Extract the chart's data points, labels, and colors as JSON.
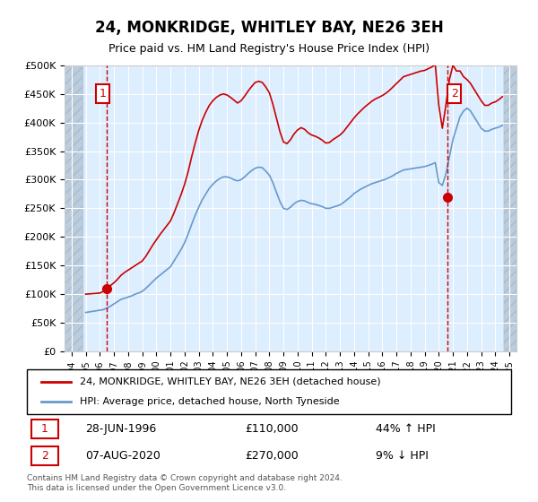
{
  "title": "24, MONKRIDGE, WHITLEY BAY, NE26 3EH",
  "subtitle": "Price paid vs. HM Land Registry's House Price Index (HPI)",
  "ylabel_ticks": [
    "£0",
    "£50K",
    "£100K",
    "£150K",
    "£200K",
    "£250K",
    "£300K",
    "£350K",
    "£400K",
    "£450K",
    "£500K"
  ],
  "ylim": [
    0,
    500000
  ],
  "xlim_start": 1993.5,
  "xlim_end": 2025.5,
  "sale1_date": "28-JUN-1996",
  "sale1_price": 110000,
  "sale1_pct": "44% ↑ HPI",
  "sale1_x": 1996.49,
  "sale2_date": "07-AUG-2020",
  "sale2_price": 270000,
  "sale2_pct": "9% ↓ HPI",
  "sale2_x": 2020.6,
  "legend_line1": "24, MONKRIDGE, WHITLEY BAY, NE26 3EH (detached house)",
  "legend_line2": "HPI: Average price, detached house, North Tyneside",
  "footer": "Contains HM Land Registry data © Crown copyright and database right 2024.\nThis data is licensed under the Open Government Licence v3.0.",
  "line_red_color": "#cc0000",
  "line_blue_color": "#6699cc",
  "bg_plot_color": "#ddeeff",
  "bg_hatch_color": "#bbccdd",
  "grid_color": "#ffffff",
  "vline_color": "#cc0000",
  "hpi_data_x": [
    1995.0,
    1995.25,
    1995.5,
    1995.75,
    1996.0,
    1996.25,
    1996.5,
    1996.75,
    1997.0,
    1997.25,
    1997.5,
    1997.75,
    1998.0,
    1998.25,
    1998.5,
    1998.75,
    1999.0,
    1999.25,
    1999.5,
    1999.75,
    2000.0,
    2000.25,
    2000.5,
    2000.75,
    2001.0,
    2001.25,
    2001.5,
    2001.75,
    2002.0,
    2002.25,
    2002.5,
    2002.75,
    2003.0,
    2003.25,
    2003.5,
    2003.75,
    2004.0,
    2004.25,
    2004.5,
    2004.75,
    2005.0,
    2005.25,
    2005.5,
    2005.75,
    2006.0,
    2006.25,
    2006.5,
    2006.75,
    2007.0,
    2007.25,
    2007.5,
    2007.75,
    2008.0,
    2008.25,
    2008.5,
    2008.75,
    2009.0,
    2009.25,
    2009.5,
    2009.75,
    2010.0,
    2010.25,
    2010.5,
    2010.75,
    2011.0,
    2011.25,
    2011.5,
    2011.75,
    2012.0,
    2012.25,
    2012.5,
    2012.75,
    2013.0,
    2013.25,
    2013.5,
    2013.75,
    2014.0,
    2014.25,
    2014.5,
    2014.75,
    2015.0,
    2015.25,
    2015.5,
    2015.75,
    2016.0,
    2016.25,
    2016.5,
    2016.75,
    2017.0,
    2017.25,
    2017.5,
    2017.75,
    2018.0,
    2018.25,
    2018.5,
    2018.75,
    2019.0,
    2019.25,
    2019.5,
    2019.75,
    2020.0,
    2020.25,
    2020.5,
    2020.75,
    2021.0,
    2021.25,
    2021.5,
    2021.75,
    2022.0,
    2022.25,
    2022.5,
    2022.75,
    2023.0,
    2023.25,
    2023.5,
    2023.75,
    2024.0,
    2024.25,
    2024.5
  ],
  "hpi_data_y": [
    68000,
    69000,
    70000,
    71000,
    72000,
    73000,
    76000,
    79000,
    83000,
    87000,
    91000,
    93000,
    95000,
    97000,
    100000,
    102000,
    105000,
    110000,
    116000,
    122000,
    128000,
    133000,
    138000,
    143000,
    148000,
    158000,
    168000,
    178000,
    190000,
    205000,
    222000,
    238000,
    252000,
    265000,
    275000,
    285000,
    292000,
    298000,
    302000,
    305000,
    305000,
    303000,
    300000,
    298000,
    300000,
    305000,
    311000,
    316000,
    320000,
    322000,
    321000,
    315000,
    308000,
    295000,
    278000,
    262000,
    250000,
    248000,
    252000,
    258000,
    262000,
    264000,
    263000,
    260000,
    258000,
    257000,
    255000,
    253000,
    250000,
    250000,
    252000,
    254000,
    256000,
    260000,
    265000,
    270000,
    276000,
    280000,
    284000,
    287000,
    290000,
    293000,
    295000,
    297000,
    299000,
    301000,
    304000,
    307000,
    311000,
    314000,
    317000,
    318000,
    319000,
    320000,
    321000,
    322000,
    323000,
    325000,
    327000,
    330000,
    295000,
    290000,
    310000,
    340000,
    370000,
    390000,
    410000,
    420000,
    425000,
    420000,
    410000,
    400000,
    390000,
    385000,
    385000,
    388000,
    390000,
    392000,
    395000
  ],
  "red_data_x": [
    1995.0,
    1995.25,
    1995.5,
    1995.75,
    1996.0,
    1996.25,
    1996.5,
    1996.75,
    1997.0,
    1997.25,
    1997.5,
    1997.75,
    1998.0,
    1998.25,
    1998.5,
    1998.75,
    1999.0,
    1999.25,
    1999.5,
    1999.75,
    2000.0,
    2000.25,
    2000.5,
    2000.75,
    2001.0,
    2001.25,
    2001.5,
    2001.75,
    2002.0,
    2002.25,
    2002.5,
    2002.75,
    2003.0,
    2003.25,
    2003.5,
    2003.75,
    2004.0,
    2004.25,
    2004.5,
    2004.75,
    2005.0,
    2005.25,
    2005.5,
    2005.75,
    2006.0,
    2006.25,
    2006.5,
    2006.75,
    2007.0,
    2007.25,
    2007.5,
    2007.75,
    2008.0,
    2008.25,
    2008.5,
    2008.75,
    2009.0,
    2009.25,
    2009.5,
    2009.75,
    2010.0,
    2010.25,
    2010.5,
    2010.75,
    2011.0,
    2011.25,
    2011.5,
    2011.75,
    2012.0,
    2012.25,
    2012.5,
    2012.75,
    2013.0,
    2013.25,
    2013.5,
    2013.75,
    2014.0,
    2014.25,
    2014.5,
    2014.75,
    2015.0,
    2015.25,
    2015.5,
    2015.75,
    2016.0,
    2016.25,
    2016.5,
    2016.75,
    2017.0,
    2017.25,
    2017.5,
    2017.75,
    2018.0,
    2018.25,
    2018.5,
    2018.75,
    2019.0,
    2019.25,
    2019.5,
    2019.75,
    2020.0,
    2020.25,
    2020.5,
    2020.75,
    2021.0,
    2021.25,
    2021.5,
    2021.75,
    2022.0,
    2022.25,
    2022.5,
    2022.75,
    2023.0,
    2023.25,
    2023.5,
    2023.75,
    2024.0,
    2024.25,
    2024.5
  ],
  "red_data_y": [
    100000,
    100500,
    101000,
    101500,
    102000,
    105000,
    110000,
    115000,
    120000,
    126000,
    133000,
    138000,
    142000,
    146000,
    150000,
    154000,
    158000,
    166000,
    176000,
    186000,
    195000,
    204000,
    212000,
    220000,
    228000,
    242000,
    258000,
    274000,
    292000,
    314000,
    340000,
    364000,
    386000,
    404000,
    418000,
    430000,
    438000,
    444000,
    448000,
    450000,
    448000,
    444000,
    439000,
    434000,
    438000,
    446000,
    455000,
    463000,
    470000,
    472000,
    470000,
    462000,
    452000,
    432000,
    408000,
    384000,
    366000,
    363000,
    370000,
    380000,
    387000,
    391000,
    388000,
    382000,
    378000,
    376000,
    373000,
    369000,
    364000,
    365000,
    370000,
    374000,
    378000,
    384000,
    392000,
    400000,
    408000,
    415000,
    421000,
    427000,
    432000,
    437000,
    441000,
    444000,
    447000,
    451000,
    456000,
    462000,
    468000,
    474000,
    480000,
    482000,
    484000,
    486000,
    488000,
    490000,
    491000,
    494000,
    497000,
    501000,
    430000,
    390000,
    430000,
    475000,
    500000,
    490000,
    490000,
    480000,
    475000,
    468000,
    458000,
    448000,
    438000,
    430000,
    430000,
    434000,
    436000,
    440000,
    445000
  ]
}
